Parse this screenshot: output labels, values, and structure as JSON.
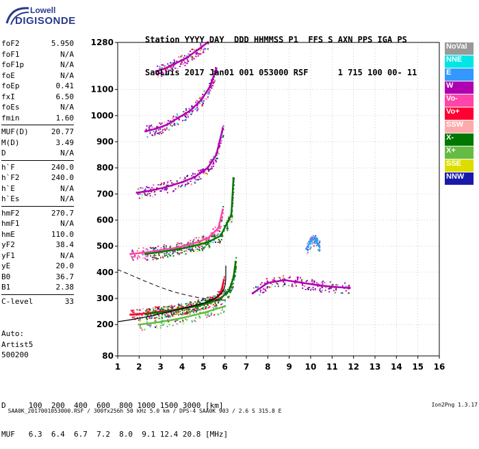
{
  "logo": {
    "line1": "Lowell",
    "line2": "DIGISONDE"
  },
  "header": {
    "line1": "Station YYYY DAY  DDD HHMMSS P1  FFS S AXN PPS IGA PS",
    "line2": "SaoLuis 2017 Jan01 001 053000 RSF      1 715 100 00- 11"
  },
  "params": {
    "group1": [
      {
        "k": "foF2",
        "v": "5.950"
      },
      {
        "k": "foF1",
        "v": "N/A"
      },
      {
        "k": "foF1p",
        "v": "N/A"
      },
      {
        "k": "foE",
        "v": "N/A"
      },
      {
        "k": "foEp",
        "v": "0.41"
      },
      {
        "k": "fxI",
        "v": "6.50"
      },
      {
        "k": "foEs",
        "v": "N/A"
      },
      {
        "k": "fmin",
        "v": "1.60"
      }
    ],
    "group2": [
      {
        "k": "MUF(D)",
        "v": "20.77"
      },
      {
        "k": "M(D)",
        "v": "3.49"
      },
      {
        "k": "D",
        "v": "N/A"
      }
    ],
    "group3": [
      {
        "k": "h`F",
        "v": "240.0"
      },
      {
        "k": "h`F2",
        "v": "240.0"
      },
      {
        "k": "h`E",
        "v": "N/A"
      },
      {
        "k": "h`Es",
        "v": "N/A"
      }
    ],
    "group4": [
      {
        "k": "hmF2",
        "v": "270.7"
      },
      {
        "k": "hmF1",
        "v": "N/A"
      },
      {
        "k": "hmE",
        "v": "110.0"
      },
      {
        "k": "yF2",
        "v": "38.4"
      },
      {
        "k": "yF1",
        "v": "N/A"
      },
      {
        "k": "yE",
        "v": "20.0"
      },
      {
        "k": "B0",
        "v": "36.7"
      },
      {
        "k": "B1",
        "v": "2.38"
      }
    ],
    "group5": [
      {
        "k": "C-level",
        "v": "33"
      }
    ]
  },
  "extra": {
    "line1": "Auto:",
    "line2": "Artist5",
    "line3": "500200"
  },
  "legend": [
    {
      "label": "NoVal",
      "color": "#999999"
    },
    {
      "label": "NNE",
      "color": "#00e5e5"
    },
    {
      "label": "E",
      "color": "#3399ff"
    },
    {
      "label": "W",
      "color": "#b000b0"
    },
    {
      "label": "Vo-",
      "color": "#ff44aa"
    },
    {
      "label": "Vo+",
      "color": "#ff0033"
    },
    {
      "label": "SSW",
      "color": "#ffaaaa"
    },
    {
      "label": "X-",
      "color": "#007700"
    },
    {
      "label": "X+",
      "color": "#66bb44"
    },
    {
      "label": "SSE",
      "color": "#dddd00"
    },
    {
      "label": "NNW",
      "color": "#1a1aaa"
    }
  ],
  "muf": {
    "line1": "D     100  200  400  600  800 1000 1500 3000 [km]",
    "line2": "MUF   6.3  6.4  6.7  7.2  8.0  9.1 12.4 20.8 [MHz]"
  },
  "footer": {
    "left": "SAA0K_2017001053000.RSF / 300fx256h 50 kHz 5.0 km / DPS-4 SAA0K 903 / 2.6 S 315.8 E",
    "right": "Ion2Png 1.3.17"
  },
  "chart_data": {
    "type": "scatter",
    "xlim": [
      1,
      16
    ],
    "ylim": [
      80,
      1280
    ],
    "x_ticks": [
      1,
      2,
      3,
      4,
      5,
      6,
      7,
      8,
      9,
      10,
      11,
      12,
      13,
      14,
      15,
      16
    ],
    "y_ticks": [
      80,
      200,
      300,
      400,
      500,
      600,
      700,
      800,
      900,
      1000,
      1100,
      1280
    ],
    "grid": true,
    "traces": [
      {
        "name": "Vo+",
        "x": [
          1.6,
          2.0,
          2.5,
          3.0,
          3.5,
          4.0,
          4.5,
          5.0,
          5.5,
          5.8,
          5.95
        ],
        "y": [
          238,
          240,
          245,
          250,
          255,
          262,
          270,
          280,
          295,
          318,
          370
        ]
      },
      {
        "name": "X-",
        "x": [
          2.3,
          2.8,
          3.3,
          3.8,
          4.3,
          4.8,
          5.3,
          5.8,
          6.2,
          6.4,
          6.5
        ],
        "y": [
          240,
          245,
          250,
          258,
          265,
          272,
          285,
          300,
          330,
          380,
          440
        ]
      },
      {
        "name": "Vo-",
        "x": [
          1.6,
          2.2,
          3.0,
          3.8,
          4.5,
          5.2,
          5.7,
          5.9
        ],
        "y": [
          470,
          475,
          485,
          495,
          510,
          530,
          570,
          640
        ]
      },
      {
        "name": "X-",
        "x": [
          2.3,
          3.0,
          3.8,
          4.5,
          5.2,
          5.8,
          6.3,
          6.4
        ],
        "y": [
          470,
          478,
          488,
          500,
          515,
          540,
          620,
          760
        ]
      },
      {
        "name": "W",
        "x": [
          1.9,
          2.5,
          3.2,
          4.0,
          4.6,
          5.2,
          5.6,
          5.9
        ],
        "y": [
          705,
          712,
          725,
          745,
          765,
          800,
          850,
          950
        ]
      },
      {
        "name": "W",
        "x": [
          2.3,
          2.8,
          3.3,
          3.8,
          4.4,
          4.9,
          5.3,
          5.6
        ],
        "y": [
          940,
          950,
          965,
          990,
          1020,
          1060,
          1110,
          1180
        ]
      },
      {
        "name": "W",
        "x": [
          2.8,
          3.2,
          3.7,
          4.2,
          4.7,
          5.2
        ],
        "y": [
          1170,
          1180,
          1200,
          1220,
          1250,
          1280
        ]
      },
      {
        "name": "W",
        "x": [
          7.3,
          8.0,
          8.8,
          9.6,
          10.4,
          11.0,
          11.8
        ],
        "y": [
          320,
          360,
          370,
          360,
          350,
          345,
          340
        ]
      },
      {
        "name": "E",
        "x": [
          9.8,
          10.0,
          10.2,
          10.4
        ],
        "y": [
          490,
          520,
          530,
          500
        ]
      },
      {
        "name": "X+",
        "x": [
          2.0,
          3.0,
          4.0,
          5.0,
          6.0
        ],
        "y": [
          200,
          210,
          225,
          245,
          270
        ]
      }
    ]
  }
}
